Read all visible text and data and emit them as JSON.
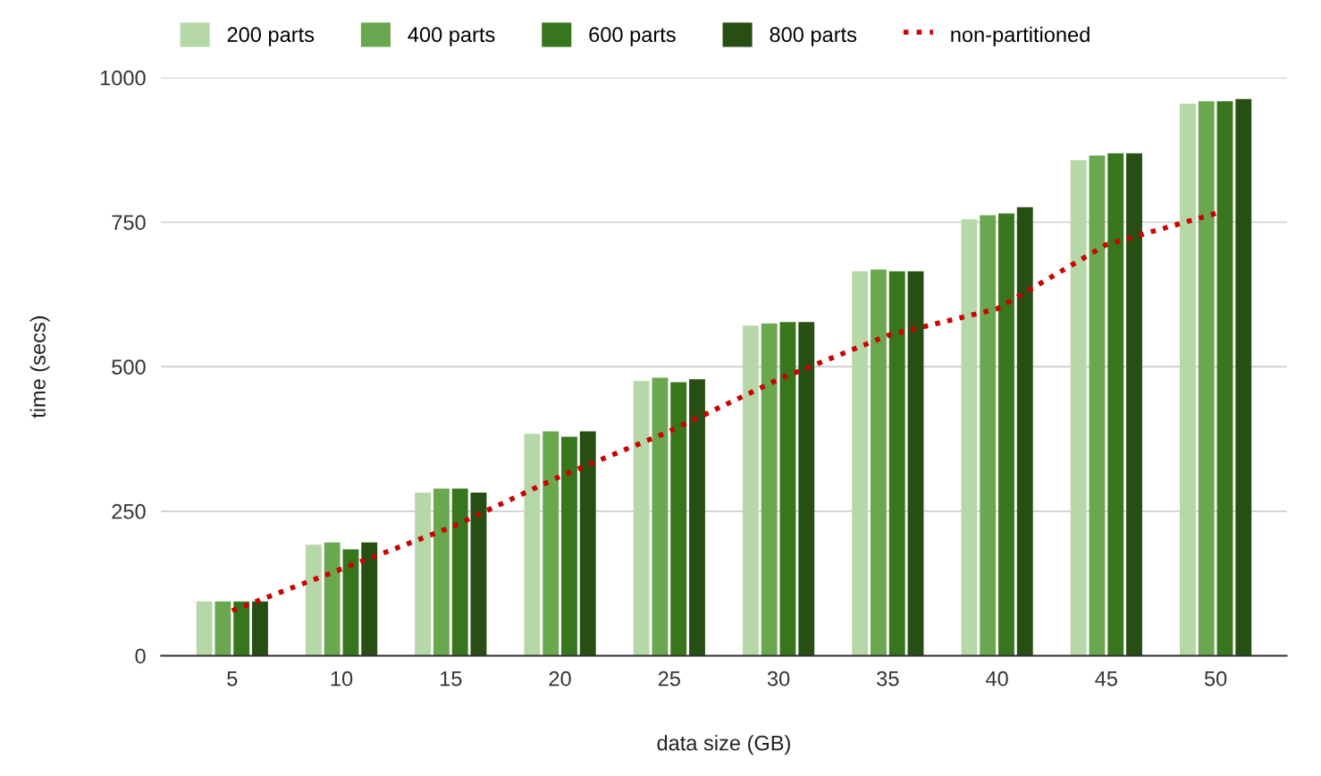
{
  "chart_data": {
    "type": "bar",
    "xlabel": "data size (GB)",
    "ylabel": "time (secs)",
    "categories": [
      "5",
      "10",
      "15",
      "20",
      "25",
      "30",
      "35",
      "40",
      "45",
      "50"
    ],
    "series": [
      {
        "name": "200 parts",
        "color": "#b6d7a8",
        "values": [
          94,
          192,
          282,
          384,
          475,
          571,
          665,
          755,
          857,
          955
        ]
      },
      {
        "name": "400 parts",
        "color": "#6aa84f",
        "values": [
          94,
          196,
          289,
          388,
          481,
          575,
          668,
          762,
          865,
          959
        ]
      },
      {
        "name": "600 parts",
        "color": "#38761d",
        "values": [
          94,
          184,
          289,
          379,
          473,
          577,
          665,
          765,
          869,
          959
        ]
      },
      {
        "name": "800 parts",
        "color": "#274e13",
        "values": [
          94,
          196,
          282,
          388,
          478,
          577,
          665,
          776,
          869,
          963
        ]
      },
      {
        "name": "non-partitioned",
        "type": "line",
        "line_style": "dotted",
        "color": "#cc0000",
        "values": [
          78,
          150,
          222,
          310,
          388,
          478,
          554,
          600,
          711,
          765
        ]
      }
    ],
    "ylim": [
      0,
      1000
    ],
    "yticks": [
      0,
      250,
      500,
      750,
      1000
    ],
    "grid": "y",
    "legend": "top"
  }
}
